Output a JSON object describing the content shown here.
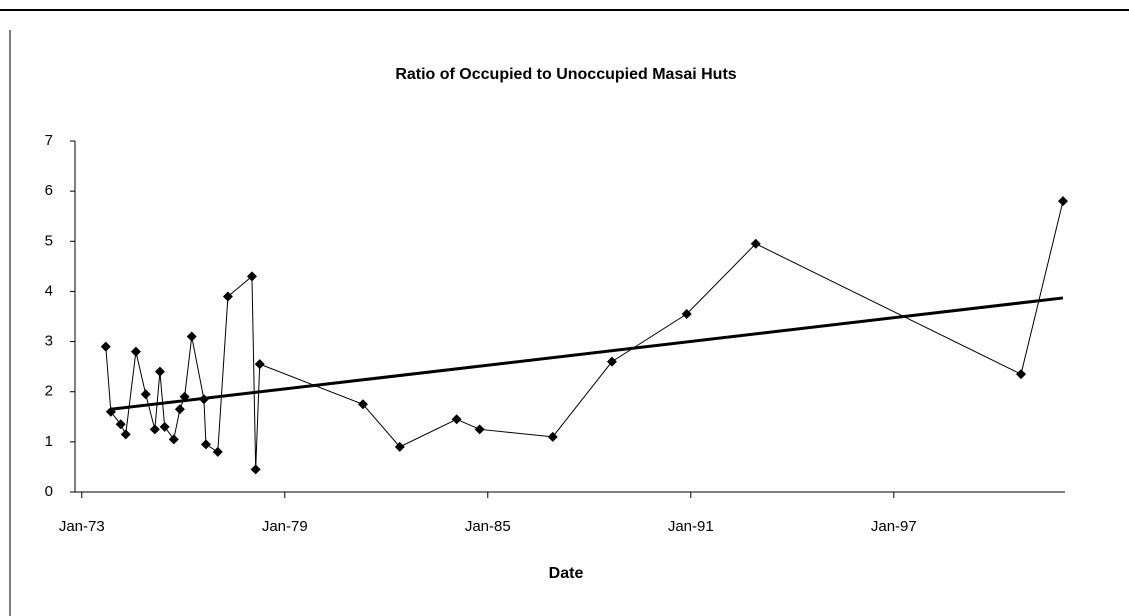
{
  "chart_data": {
    "type": "line",
    "title": "Ratio of Occupied to Unoccupied Masai Huts",
    "x_label": "Date",
    "x": [
      1973.71,
      1973.86,
      1974.15,
      1974.3,
      1974.6,
      1974.89,
      1975.16,
      1975.31,
      1975.45,
      1975.72,
      1975.9,
      1976.04,
      1976.25,
      1976.61,
      1976.67,
      1977.02,
      1977.32,
      1978.03,
      1978.14,
      1978.26,
      1981.31,
      1982.4,
      1984.08,
      1984.76,
      1986.92,
      1988.67,
      1990.88,
      1992.92,
      2000.76,
      2002.0
    ],
    "values": [
      2.9,
      1.6,
      1.35,
      1.15,
      2.8,
      1.95,
      1.25,
      2.4,
      1.3,
      1.05,
      1.65,
      1.9,
      3.1,
      1.85,
      0.95,
      0.8,
      3.9,
      4.3,
      0.45,
      2.55,
      1.75,
      0.9,
      1.45,
      1.25,
      1.1,
      2.6,
      3.55,
      4.95,
      2.35,
      5.8
    ],
    "color": "#000000",
    "trendline": {
      "x": [
        1973.86,
        2002.0
      ],
      "values": [
        1.65,
        3.87
      ],
      "color": "#000000"
    },
    "xlim": [
      1972.8,
      2002.06
    ],
    "xticks": [
      {
        "value": 1973,
        "label": "Jan-73"
      },
      {
        "value": 1979,
        "label": "Jan-79"
      },
      {
        "value": 1985,
        "label": "Jan-85"
      },
      {
        "value": 1991,
        "label": "Jan-91"
      },
      {
        "value": 1997,
        "label": "Jan-97"
      }
    ],
    "ylim": [
      0,
      7
    ],
    "yticks": [
      0,
      1,
      2,
      3,
      4,
      5,
      6,
      7
    ],
    "grid": false
  }
}
